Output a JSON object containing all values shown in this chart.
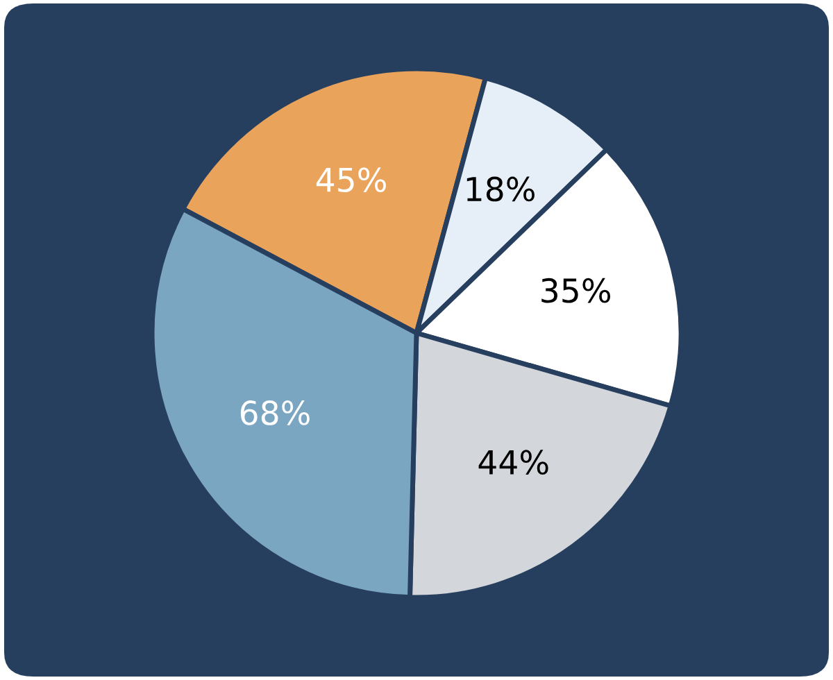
{
  "chart_data": {
    "type": "pie",
    "categories": [
      null,
      null,
      null,
      null,
      null
    ],
    "values": [
      45,
      18,
      35,
      44,
      68
    ],
    "colors": [
      "#e9a35b",
      "#e6eef8",
      "#ffffff",
      "#d3d6db",
      "#7aa6c2"
    ],
    "value_labels": [
      "45%",
      "18%",
      "35%",
      "44%",
      "68%"
    ],
    "legend": false
  }
}
